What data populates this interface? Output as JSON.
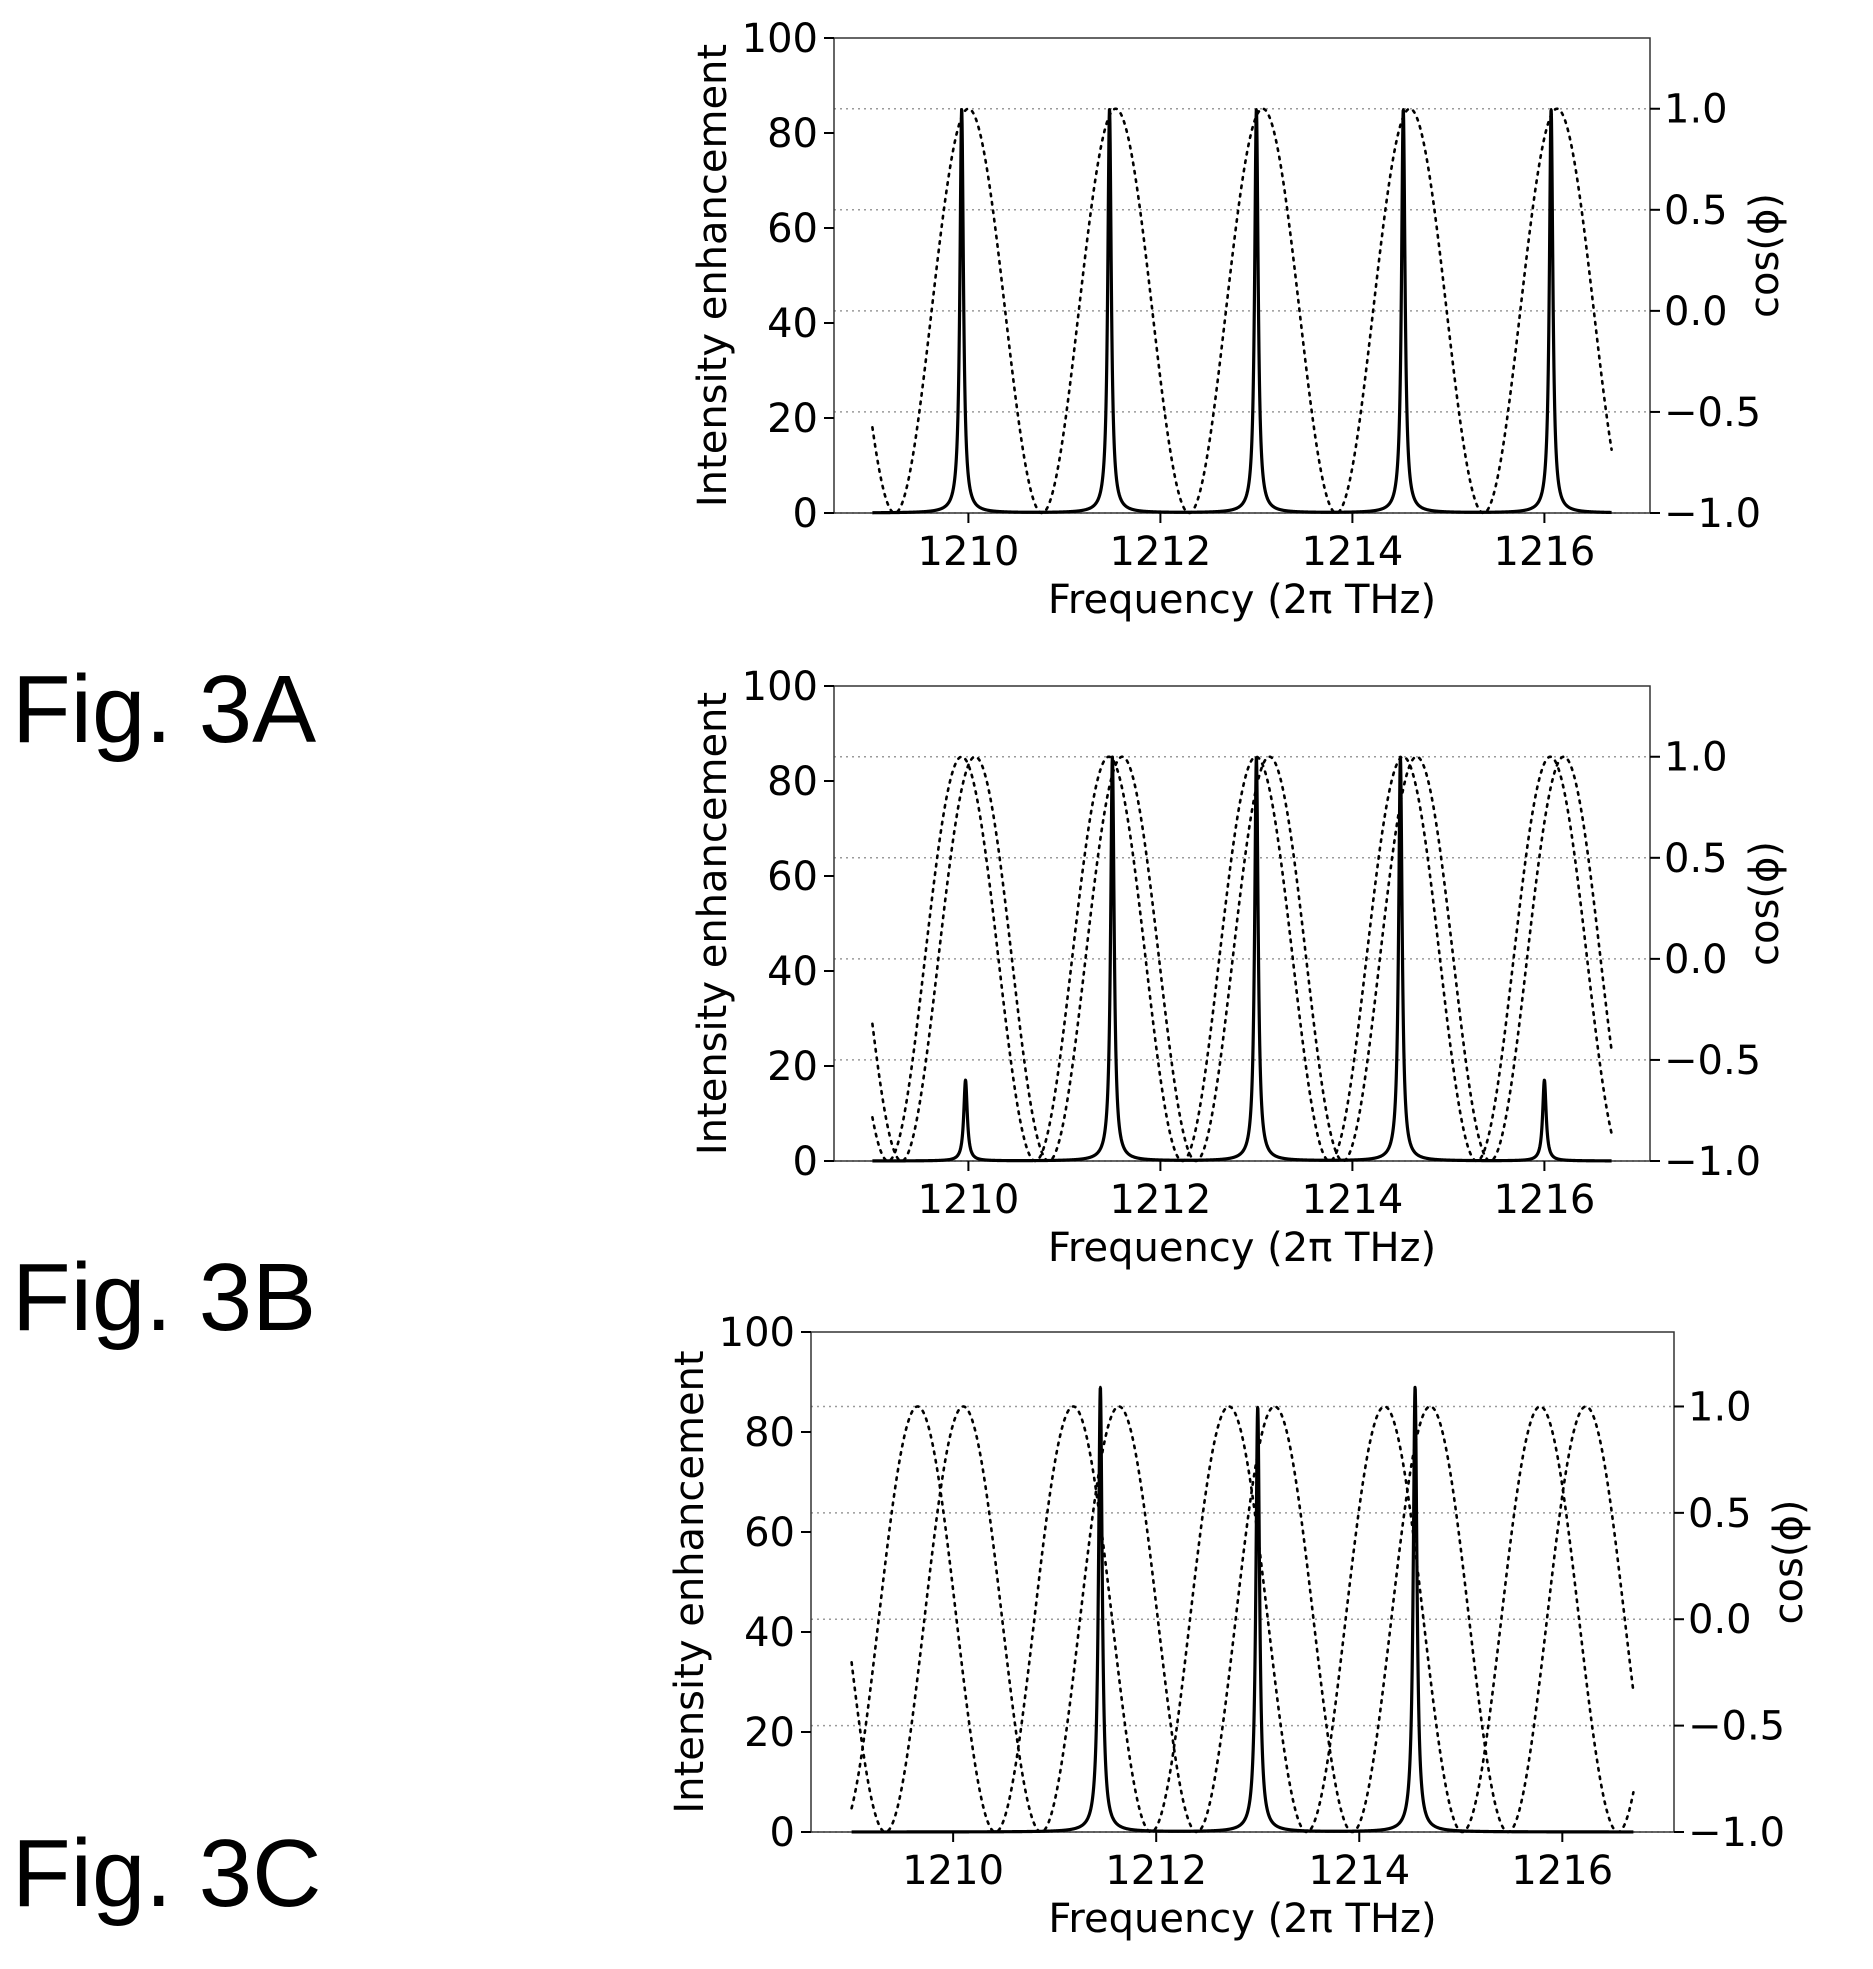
{
  "figure_labels": [
    "Fig. 3A",
    "Fig. 3B",
    "Fig. 3C"
  ],
  "chart_data": [
    {
      "id": "fig-3a",
      "type": "line",
      "title": "",
      "xlabel": "Frequency (2π THz)",
      "ylabel": "Intensity enhancement",
      "ylabel_right": "cos(ϕ)",
      "xlim": [
        1208.6,
        1217.1
      ],
      "ylim": [
        0,
        100
      ],
      "ylim_right": [
        -1.0,
        1.35
      ],
      "x_ticks": [
        "1210",
        "1212",
        "1214",
        "1216"
      ],
      "x_tick_values": [
        1210,
        1212,
        1214,
        1216
      ],
      "y_ticks": [
        "0",
        "20",
        "40",
        "60",
        "80",
        "100"
      ],
      "y_tick_values": [
        0,
        20,
        40,
        60,
        80,
        100
      ],
      "y_right_ticks": [
        "−1.0",
        "−0.5",
        "0.0",
        "0.5",
        "1.0"
      ],
      "y_right_tick_values": [
        -1.0,
        -0.5,
        0.0,
        0.5,
        1.0
      ],
      "grid": true,
      "x_range": [
        1209.0,
        1216.7
      ],
      "series": [
        {
          "style": "solid",
          "axis": "left",
          "peaks": [
            {
              "x": 1209.93,
              "y": 85
            },
            {
              "x": 1211.47,
              "y": 85
            },
            {
              "x": 1213.0,
              "y": 85
            },
            {
              "x": 1214.53,
              "y": 85
            },
            {
              "x": 1216.07,
              "y": 85
            }
          ]
        },
        {
          "style": "dotted",
          "axis": "right",
          "cos_branches": [
            {
              "period": 1.533,
              "phase_x": 1210.0,
              "x_range": [
                1209.0,
                1216.7
              ]
            }
          ]
        }
      ]
    },
    {
      "id": "fig-3b",
      "type": "line",
      "title": "",
      "xlabel": "Frequency (2π THz)",
      "ylabel": "Intensity enhancement",
      "ylabel_right": "cos(ϕ)",
      "xlim": [
        1208.6,
        1217.1
      ],
      "ylim": [
        0,
        100
      ],
      "ylim_right": [
        -1.0,
        1.35
      ],
      "x_ticks": [
        "1210",
        "1212",
        "1214",
        "1216"
      ],
      "x_tick_values": [
        1210,
        1212,
        1214,
        1216
      ],
      "y_ticks": [
        "0",
        "20",
        "40",
        "60",
        "80",
        "100"
      ],
      "y_tick_values": [
        0,
        20,
        40,
        60,
        80,
        100
      ],
      "y_right_ticks": [
        "−1.0",
        "−0.5",
        "0.0",
        "0.5",
        "1.0"
      ],
      "y_right_tick_values": [
        -1.0,
        -0.5,
        0.0,
        0.5,
        1.0
      ],
      "grid": true,
      "x_range": [
        1209.0,
        1216.7
      ],
      "series": [
        {
          "style": "solid",
          "axis": "left",
          "peaks": [
            {
              "x": 1209.97,
              "y": 17
            },
            {
              "x": 1211.5,
              "y": 85
            },
            {
              "x": 1213.0,
              "y": 85
            },
            {
              "x": 1214.5,
              "y": 85
            },
            {
              "x": 1216.0,
              "y": 17
            }
          ]
        },
        {
          "style": "dotted",
          "axis": "right",
          "cos_branches": [
            {
              "period": 1.533,
              "phase_x": 1209.93,
              "x_range": [
                1209.0,
                1216.7
              ]
            },
            {
              "period": 1.533,
              "phase_x": 1210.07,
              "x_range": [
                1209.0,
                1216.7
              ]
            }
          ]
        }
      ]
    },
    {
      "id": "fig-3c",
      "type": "line",
      "title": "",
      "xlabel": "Frequency (2π THz)",
      "ylabel": "Intensity enhancement",
      "ylabel_right": "cos(ϕ)",
      "xlim": [
        1208.6,
        1217.1
      ],
      "ylim": [
        0,
        100
      ],
      "ylim_right": [
        -1.0,
        1.35
      ],
      "x_ticks": [
        "1210",
        "1212",
        "1214",
        "1216"
      ],
      "x_tick_values": [
        1210,
        1212,
        1214,
        1216
      ],
      "y_ticks": [
        "0",
        "20",
        "40",
        "60",
        "80",
        "100"
      ],
      "y_tick_values": [
        0,
        20,
        40,
        60,
        80,
        100
      ],
      "y_right_ticks": [
        "−1.0",
        "−0.5",
        "0.0",
        "0.5",
        "1.0"
      ],
      "y_right_tick_values": [
        -1.0,
        -0.5,
        0.0,
        0.5,
        1.0
      ],
      "grid": true,
      "x_range": [
        1209.0,
        1216.7
      ],
      "series": [
        {
          "style": "solid",
          "axis": "left",
          "peaks": [
            {
              "x": 1211.45,
              "y": 89
            },
            {
              "x": 1213.0,
              "y": 85
            },
            {
              "x": 1214.55,
              "y": 89
            }
          ]
        },
        {
          "style": "dotted",
          "axis": "right",
          "cos_branches": [
            {
              "period": 1.533,
              "phase_x": 1209.65,
              "x_range": [
                1209.0,
                1216.7
              ]
            },
            {
              "period": 1.533,
              "phase_x": 1210.1,
              "x_range": [
                1209.0,
                1216.7
              ]
            }
          ]
        }
      ]
    }
  ]
}
